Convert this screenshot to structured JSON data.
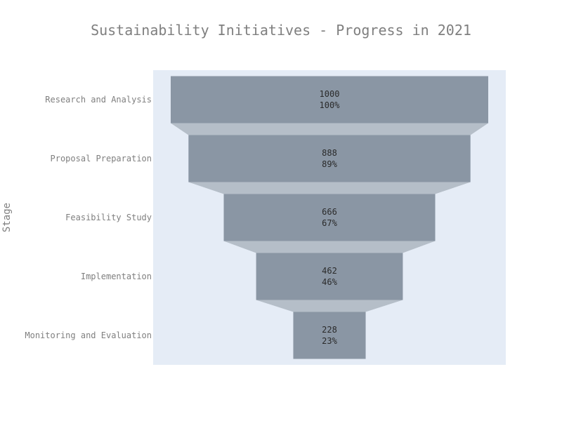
{
  "chart_data": {
    "type": "funnel",
    "title": "Sustainability Initiatives - Progress in 2021",
    "ylabel": "Stage",
    "xlabel": "",
    "categories": [
      "Research and Analysis",
      "Proposal Preparation",
      "Feasibility Study",
      "Implementation",
      "Monitoring and Evaluation"
    ],
    "values": [
      1000,
      888,
      666,
      462,
      228
    ],
    "percent_labels": [
      "100%",
      "89%",
      "67%",
      "46%",
      "23%"
    ],
    "colors": {
      "plot_background": "#e5ecf6",
      "bar_fill": "#8a96a4",
      "connector_fill": "#b5bec8",
      "title_text": "#7f7f7f",
      "value_text": "#2a2a2a"
    }
  }
}
